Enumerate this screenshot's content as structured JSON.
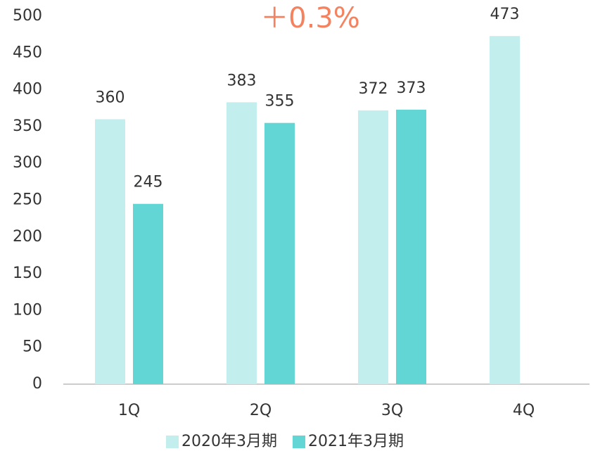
{
  "chart_data": {
    "type": "bar",
    "annotation": "＋0.3%",
    "categories": [
      "1Q",
      "2Q",
      "3Q",
      "4Q"
    ],
    "series": [
      {
        "name": "2020年3月期",
        "color": "#c3eeee",
        "values": [
          360,
          383,
          372,
          473
        ]
      },
      {
        "name": "2021年3月期",
        "color": "#62d5d5",
        "values": [
          245,
          355,
          373,
          null
        ]
      }
    ],
    "ylim": [
      0,
      500
    ],
    "yticks": [
      0,
      50,
      100,
      150,
      200,
      250,
      300,
      350,
      400,
      450,
      500
    ],
    "grid": false,
    "legend": "bottom"
  }
}
